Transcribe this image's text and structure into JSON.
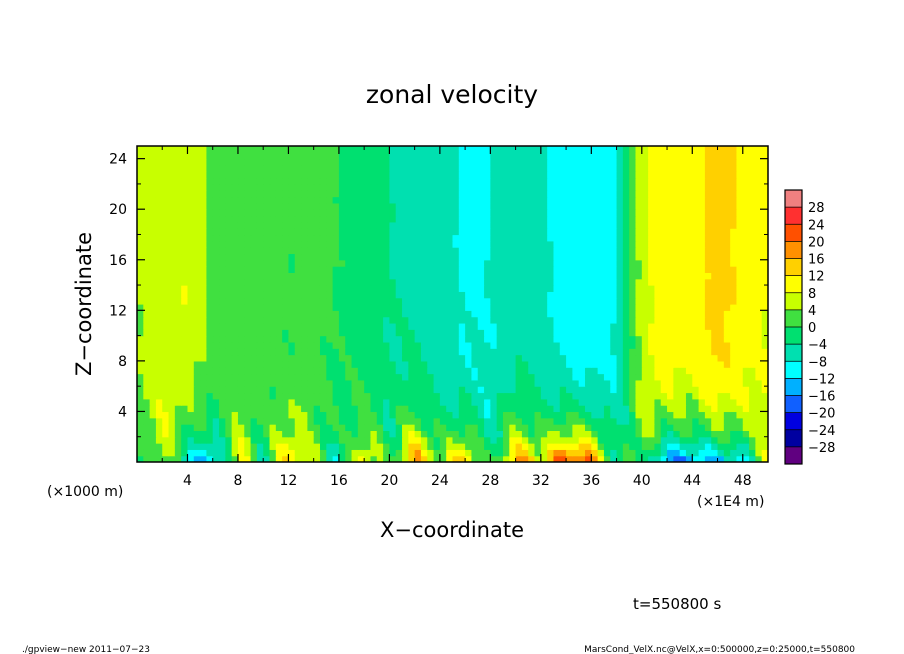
{
  "chart_data": {
    "type": "heatmap",
    "title": "zonal velocity",
    "xlabel": "X−coordinate",
    "ylabel": "Z−coordinate",
    "x_unit_label": "(×1E4 m)",
    "y_unit_label": "(×1000 m)",
    "xlim": [
      0,
      50
    ],
    "ylim": [
      0,
      25
    ],
    "x_ticks": [
      4,
      8,
      12,
      16,
      20,
      24,
      28,
      32,
      36,
      40,
      44,
      48
    ],
    "x_tick_labels": [
      "4",
      "8",
      "12",
      "16",
      "20",
      "24",
      "28",
      "32",
      "36",
      "40",
      "44",
      "48"
    ],
    "y_ticks": [
      4,
      8,
      12,
      16,
      20,
      24
    ],
    "y_tick_labels": [
      "4",
      "8",
      "12",
      "16",
      "20",
      "24"
    ],
    "colorbar": {
      "levels": [
        28,
        24,
        20,
        16,
        12,
        8,
        4,
        0,
        -4,
        -8,
        -12,
        -16,
        -20,
        -24,
        -28
      ],
      "labels": [
        "28",
        "24",
        "20",
        "16",
        "12",
        "8",
        "4",
        "0",
        "−4",
        "−8",
        "−12",
        "−16",
        "−20",
        "−24",
        "−28"
      ],
      "colors": [
        "#f08080",
        "#ff3030",
        "#ff5000",
        "#ff9000",
        "#ffd000",
        "#ffff00",
        "#c8ff00",
        "#40e040",
        "#00e070",
        "#00e0b0",
        "#00ffff",
        "#00b0ff",
        "#1060ff",
        "#0000e0",
        "#0000a0",
        "#600080"
      ]
    },
    "field_profile": {
      "x": [
        0,
        2,
        4,
        6,
        8,
        10,
        12,
        14,
        16,
        18,
        20,
        22,
        24,
        26,
        28,
        30,
        32,
        34,
        36,
        38,
        40,
        42,
        44,
        46,
        48,
        50
      ],
      "upper_u": [
        4,
        7,
        8,
        3,
        1,
        2,
        0,
        1,
        0,
        -2,
        -4,
        -5,
        -6,
        -9,
        -8,
        -6,
        -7,
        -10,
        -12,
        -8,
        6,
        12,
        10,
        14,
        11,
        8
      ],
      "near_surface_u": [
        -6,
        8,
        -10,
        -14,
        10,
        -4,
        14,
        4,
        -6,
        12,
        -2,
        20,
        4,
        16,
        -4,
        18,
        10,
        24,
        22,
        -4,
        2,
        -18,
        -16,
        -14,
        -10,
        6
      ]
    }
  },
  "footer": {
    "time_label": "t=550800 s",
    "left_note": "./gpview−new   2011−07−23",
    "right_note": "MarsCond_VelX.nc@VelX,x=0:500000,z=0:25000,t=550800"
  }
}
